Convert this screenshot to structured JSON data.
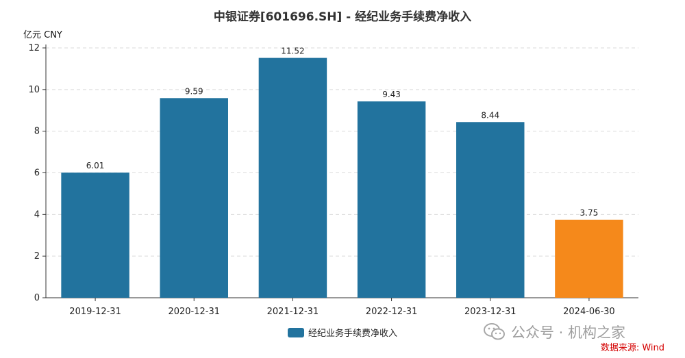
{
  "chart_title": "中银证券[601696.SH] - 经纪业务手续费净收入",
  "y_unit": "亿元  CNY",
  "legend": {
    "label": "经纪业务手续费净收入",
    "color": "#22739e"
  },
  "watermark": {
    "text": "公众号 · 机构之家",
    "icon": "wechat-icon"
  },
  "source_note": "数据来源: Wind",
  "colors": {
    "primary_bar": "#22739e",
    "highlight_bar": "#f5891b",
    "grid": "#d9d9d9",
    "axis": "#333333",
    "source": "#d40000"
  },
  "chart_data": {
    "type": "bar",
    "categories": [
      "2019-12-31",
      "2020-12-31",
      "2021-12-31",
      "2022-12-31",
      "2023-12-31",
      "2024-06-30"
    ],
    "series": [
      {
        "name": "经纪业务手续费净收入",
        "values": [
          6.01,
          9.59,
          11.52,
          9.43,
          8.44,
          3.75
        ],
        "data_labels": [
          "6.01",
          "9.59",
          "11.52",
          "9.43",
          "8.44",
          "3.75"
        ],
        "highlight_index": 5
      }
    ],
    "y_ticks": [
      "0",
      "2",
      "4",
      "6",
      "8",
      "10",
      "12"
    ],
    "ylim": [
      0,
      12
    ],
    "grid": true,
    "legend_position": "bottom-center"
  }
}
